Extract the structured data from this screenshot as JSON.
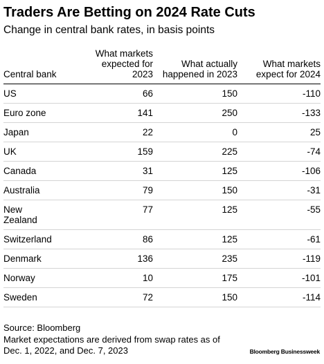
{
  "title": "Traders Are Betting on 2024 Rate Cuts",
  "subtitle": "Change in central bank rates, in basis points",
  "chart_data": {
    "type": "table",
    "columns": [
      "Central bank",
      "What markets expected for 2023",
      "What actually happened in 2023",
      "What markets expect for 2024"
    ],
    "rows": [
      [
        "US",
        "66",
        "150",
        "-110"
      ],
      [
        "Euro zone",
        "141",
        "250",
        "-133"
      ],
      [
        "Japan",
        "22",
        "0",
        "25"
      ],
      [
        "UK",
        "159",
        "225",
        "-74"
      ],
      [
        "Canada",
        "31",
        "125",
        "-106"
      ],
      [
        "Australia",
        "79",
        "150",
        "-31"
      ],
      [
        "New Zealand",
        "77",
        "125",
        "-55"
      ],
      [
        "Switzerland",
        "86",
        "125",
        "-61"
      ],
      [
        "Denmark",
        "136",
        "235",
        "-119"
      ],
      [
        "Norway",
        "10",
        "175",
        "-101"
      ],
      [
        "Sweden",
        "72",
        "150",
        "-114"
      ]
    ]
  },
  "footer": {
    "source": "Source: Bloomberg",
    "note": "Market expectations are derived from swap rates as of Dec. 1, 2022, and Dec. 7, 2023"
  },
  "credit": "Bloomberg Businessweek"
}
